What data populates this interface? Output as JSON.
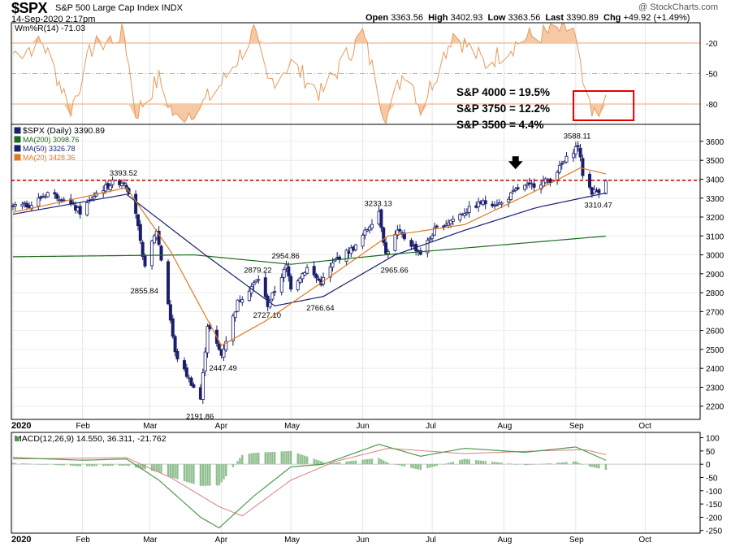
{
  "header": {
    "symbol": "$SPX",
    "name": "S&P 500 Large Cap Index",
    "exchange": "INDX",
    "datetime": "14-Sep-2020 2:17pm",
    "open_label": "Open",
    "open": "3363.56",
    "high_label": "High",
    "high": "3402.93",
    "low_label": "Low",
    "low": "3363.56",
    "last_label": "Last",
    "last": "3390.89",
    "chg_label": "Chg",
    "chg": "+49.92 (+1.49%)",
    "brand": "@ StockCharts.com"
  },
  "callout": {
    "lines": [
      "S&P 4000 = 19.5%",
      "S&P 3750 = 12.2%",
      "S&P 3500 = 4.4%"
    ]
  },
  "colors": {
    "price": "#1a1f6b",
    "ma200": "#1b6b1b",
    "ma50": "#1a1f6b",
    "ma20": "#e07a1f",
    "willr_fill": "#f6c9a4",
    "willr_line": "#e79a5e",
    "macd": "#4f9a4f",
    "signal": "#d98080",
    "hist": "#8fbf8f",
    "support": "#cc0000",
    "box": "#e00000"
  },
  "chart_data": [
    {
      "type": "line",
      "title": "$SPX (Daily) 3390.89",
      "x_axis_labels": [
        "2020",
        "Feb",
        "Mar",
        "Apr",
        "May",
        "Jun",
        "Jul",
        "Aug",
        "Sep",
        "Oct"
      ],
      "y_ticks": [
        2200,
        2300,
        2400,
        2500,
        2600,
        2700,
        2800,
        2900,
        3000,
        3100,
        3200,
        3300,
        3400,
        3500,
        3600
      ],
      "ylim": [
        2130,
        3690
      ],
      "legend": [
        {
          "key": "price",
          "label": "$SPX (Daily) 3390.89"
        },
        {
          "key": "ma200",
          "label": "MA(200) 3098.76"
        },
        {
          "key": "ma50",
          "label": "MA(50) 3326.78"
        },
        {
          "key": "ma20",
          "label": "MA(20) 3428.36"
        }
      ],
      "price_keypoints": [
        [
          "2020-01-02",
          3257
        ],
        [
          "2020-01-10",
          3265
        ],
        [
          "2020-01-17",
          3330
        ],
        [
          "2020-01-24",
          3295
        ],
        [
          "2020-01-31",
          3225
        ],
        [
          "2020-02-07",
          3327
        ],
        [
          "2020-02-14",
          3380
        ],
        [
          "2020-02-19",
          3386
        ],
        [
          "2020-02-21",
          3337
        ],
        [
          "2020-02-24",
          3225
        ],
        [
          "2020-02-27",
          2979
        ],
        [
          "2020-02-28",
          2954
        ],
        [
          "2020-03-04",
          3130
        ],
        [
          "2020-03-09",
          2746
        ],
        [
          "2020-03-12",
          2480
        ],
        [
          "2020-03-16",
          2386
        ],
        [
          "2020-03-23",
          2237
        ],
        [
          "2020-03-26",
          2630
        ],
        [
          "2020-04-01",
          2470
        ],
        [
          "2020-04-08",
          2750
        ],
        [
          "2020-04-17",
          2875
        ],
        [
          "2020-04-21",
          2736
        ],
        [
          "2020-04-29",
          2939
        ],
        [
          "2020-05-01",
          2830
        ],
        [
          "2020-05-08",
          2930
        ],
        [
          "2020-05-14",
          2852
        ],
        [
          "2020-05-20",
          2971
        ],
        [
          "2020-05-29",
          3044
        ],
        [
          "2020-06-08",
          3232
        ],
        [
          "2020-06-11",
          3002
        ],
        [
          "2020-06-16",
          3124
        ],
        [
          "2020-06-26",
          3009
        ],
        [
          "2020-07-02",
          3130
        ],
        [
          "2020-07-15",
          3227
        ],
        [
          "2020-07-22",
          3276
        ],
        [
          "2020-07-31",
          3271
        ],
        [
          "2020-08-07",
          3351
        ],
        [
          "2020-08-14",
          3372
        ],
        [
          "2020-08-21",
          3397
        ],
        [
          "2020-08-28",
          3508
        ],
        [
          "2020-09-02",
          3580
        ],
        [
          "2020-09-04",
          3427
        ],
        [
          "2020-09-08",
          3332
        ],
        [
          "2020-09-10",
          3339
        ],
        [
          "2020-09-11",
          3341
        ],
        [
          "2020-09-14",
          3391
        ]
      ],
      "ma200_keypoints": [
        [
          "2020-01-02",
          2990
        ],
        [
          "2020-03-20",
          3000
        ],
        [
          "2020-05-01",
          2950
        ],
        [
          "2020-06-15",
          3005
        ],
        [
          "2020-09-14",
          3099
        ]
      ],
      "ma50_keypoints": [
        [
          "2020-01-02",
          3215
        ],
        [
          "2020-02-20",
          3320
        ],
        [
          "2020-03-25",
          3000
        ],
        [
          "2020-04-24",
          2730
        ],
        [
          "2020-05-15",
          2780
        ],
        [
          "2020-06-15",
          3000
        ],
        [
          "2020-07-15",
          3130
        ],
        [
          "2020-08-15",
          3250
        ],
        [
          "2020-09-14",
          3327
        ]
      ],
      "ma20_keypoints": [
        [
          "2020-01-02",
          3225
        ],
        [
          "2020-02-20",
          3355
        ],
        [
          "2020-03-10",
          3020
        ],
        [
          "2020-04-01",
          2520
        ],
        [
          "2020-04-20",
          2650
        ],
        [
          "2020-05-15",
          2860
        ],
        [
          "2020-06-12",
          3100
        ],
        [
          "2020-07-15",
          3160
        ],
        [
          "2020-08-15",
          3340
        ],
        [
          "2020-09-03",
          3460
        ],
        [
          "2020-09-14",
          3428
        ]
      ],
      "support_level": 3393.52,
      "annotations": [
        {
          "text": "3393.52",
          "date": "2020-02-19",
          "value": 3393.52
        },
        {
          "text": "2855.84",
          "date": "2020-02-28",
          "value": 2855.84
        },
        {
          "text": "2191.86",
          "date": "2020-03-23",
          "value": 2191.86
        },
        {
          "text": "2447.49",
          "date": "2020-04-02",
          "value": 2447.49
        },
        {
          "text": "2879.22",
          "date": "2020-04-17",
          "value": 2879.22
        },
        {
          "text": "2727.10",
          "date": "2020-04-21",
          "value": 2727.1
        },
        {
          "text": "2954.86",
          "date": "2020-04-29",
          "value": 2954.86
        },
        {
          "text": "2766.64",
          "date": "2020-05-14",
          "value": 2766.64
        },
        {
          "text": "3233.13",
          "date": "2020-06-08",
          "value": 3233.13
        },
        {
          "text": "2965.66",
          "date": "2020-06-15",
          "value": 2965.66
        },
        {
          "text": "3588.11",
          "date": "2020-09-02",
          "value": 3588.11
        },
        {
          "text": "3310.47",
          "date": "2020-09-11",
          "value": 3310.47
        }
      ]
    },
    {
      "type": "area",
      "title": "Wm%R(14) -71.03",
      "y_ticks": [
        -20,
        -50,
        -80
      ],
      "ylim": [
        -100,
        0
      ],
      "keypoints": [
        [
          "2020-01-02",
          -30
        ],
        [
          "2020-01-15",
          -20
        ],
        [
          "2020-01-27",
          -85
        ],
        [
          "2020-02-05",
          -25
        ],
        [
          "2020-02-19",
          -10
        ],
        [
          "2020-02-24",
          -90
        ],
        [
          "2020-03-05",
          -55
        ],
        [
          "2020-03-12",
          -95
        ],
        [
          "2020-03-24",
          -80
        ],
        [
          "2020-04-01",
          -60
        ],
        [
          "2020-04-15",
          -10
        ],
        [
          "2020-04-21",
          -60
        ],
        [
          "2020-05-01",
          -40
        ],
        [
          "2020-05-14",
          -70
        ],
        [
          "2020-06-01",
          -10
        ],
        [
          "2020-06-11",
          -95
        ],
        [
          "2020-06-20",
          -40
        ],
        [
          "2020-06-26",
          -85
        ],
        [
          "2020-07-10",
          -10
        ],
        [
          "2020-07-24",
          -40
        ],
        [
          "2020-08-10",
          -15
        ],
        [
          "2020-08-31",
          -5
        ],
        [
          "2020-09-04",
          -60
        ],
        [
          "2020-09-08",
          -95
        ],
        [
          "2020-09-14",
          -71
        ]
      ]
    },
    {
      "type": "line",
      "title": "MACD(12,26,9) 14.550, 36.311, -21.762",
      "y_ticks": [
        100,
        50,
        0,
        -50,
        -100,
        -150,
        -200,
        -250
      ],
      "ylim": [
        -260,
        120
      ],
      "macd_keypoints": [
        [
          "2020-01-02",
          25
        ],
        [
          "2020-02-01",
          15
        ],
        [
          "2020-02-20",
          20
        ],
        [
          "2020-03-05",
          -60
        ],
        [
          "2020-03-23",
          -200
        ],
        [
          "2020-03-31",
          -240
        ],
        [
          "2020-04-15",
          -120
        ],
        [
          "2020-05-01",
          -10
        ],
        [
          "2020-05-15",
          0
        ],
        [
          "2020-06-08",
          75
        ],
        [
          "2020-06-26",
          30
        ],
        [
          "2020-07-15",
          60
        ],
        [
          "2020-08-10",
          45
        ],
        [
          "2020-09-01",
          65
        ],
        [
          "2020-09-14",
          15
        ]
      ],
      "signal_keypoints": [
        [
          "2020-01-02",
          20
        ],
        [
          "2020-02-20",
          25
        ],
        [
          "2020-03-10",
          -50
        ],
        [
          "2020-03-31",
          -160
        ],
        [
          "2020-04-10",
          -195
        ],
        [
          "2020-05-01",
          -60
        ],
        [
          "2020-05-20",
          10
        ],
        [
          "2020-06-12",
          60
        ],
        [
          "2020-07-15",
          40
        ],
        [
          "2020-08-15",
          50
        ],
        [
          "2020-09-05",
          55
        ],
        [
          "2020-09-14",
          36
        ]
      ]
    }
  ]
}
